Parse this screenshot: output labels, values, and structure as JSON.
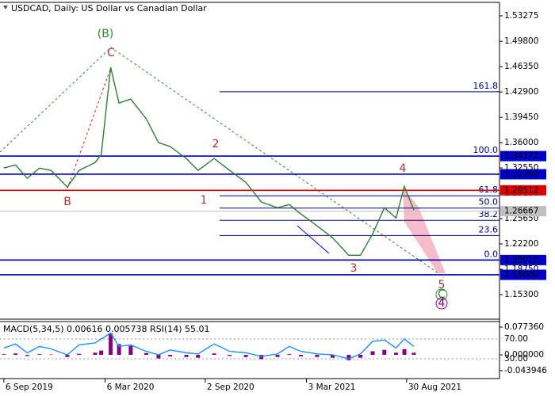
{
  "chart_data": [
    {
      "type": "line",
      "title": "USDCAD, Daily:  US Dollar vs Canadian Dollar",
      "x": [
        "2019-09-06",
        "2019-09-27",
        "2019-10-18",
        "2019-11-09",
        "2019-11-30",
        "2019-12-29",
        "2020-01-19",
        "2020-02-17",
        "2020-02-28",
        "2020-03-16",
        "2020-03-31",
        "2020-04-21",
        "2020-05-19",
        "2020-06-10",
        "2020-07-01",
        "2020-07-30",
        "2020-08-20",
        "2020-09-18",
        "2020-10-16",
        "2020-11-14",
        "2020-12-12",
        "2021-01-10",
        "2021-01-31",
        "2021-02-21",
        "2021-03-22",
        "2021-04-19",
        "2021-05-18",
        "2021-06-08",
        "2021-06-30",
        "2021-07-21",
        "2021-08-11",
        "2021-08-26",
        "2021-09-12"
      ],
      "values": [
        1.3254,
        1.3297,
        1.3114,
        1.3254,
        1.3222,
        1.2995,
        1.3222,
        1.333,
        1.3438,
        1.4625,
        1.414,
        1.4194,
        1.3924,
        1.36,
        1.3546,
        1.3384,
        1.3222,
        1.3384,
        1.3222,
        1.306,
        1.279,
        1.2714,
        1.2757,
        1.2628,
        1.2466,
        1.2304,
        1.2066,
        1.2066,
        1.2358,
        1.2714,
        1.2574,
        1.3005,
        1.2682
      ],
      "color": "#2f7d32",
      "xlim": [
        "2019-08-30",
        "2022-02-13"
      ],
      "xticks": [
        {
          "value": "2019-09-06",
          "label": "6 Sep 2019"
        },
        {
          "value": "2020-03-06",
          "label": "6 Mar 2020"
        },
        {
          "value": "2020-09-02",
          "label": "2 Sep 2020"
        },
        {
          "value": "2021-03-03",
          "label": "3 Mar 2021"
        },
        {
          "value": "2021-08-30",
          "label": "30 Aug 2021"
        }
      ],
      "ylim": [
        1.12064,
        1.54893
      ],
      "yticks": [
        1.53275,
        {
          "value": 1.498,
          "label": "1.49800"
        },
        {
          "value": 1.4635,
          "label": "1.46350"
        },
        {
          "value": 1.429,
          "label": "1.42900"
        },
        {
          "value": 1.3945,
          "label": "1.39450"
        },
        {
          "value": 1.36,
          "label": "1.36000"
        },
        {
          "value": 1.3255,
          "label": "1.32550"
        },
        {
          "value": 1.291,
          "label": "1.29100"
        },
        {
          "value": 1.2565,
          "label": "1.25650"
        },
        {
          "value": 1.222,
          "label": "1.22200"
        },
        {
          "value": 1.1875,
          "label": "1.18750"
        },
        {
          "value": 1.153,
          "label": "1.15300"
        }
      ],
      "levels": [
        {
          "value": 1.34172,
          "label": "1.34172",
          "color": "#0000cc"
        },
        {
          "value": 1.317,
          "label": "1.31700",
          "color": "#0000cc"
        },
        {
          "value": 1.29512,
          "label": "1.29512",
          "color": "#dd0000"
        },
        {
          "value": 1.26667,
          "label": "1.26667",
          "color": "#c0c0c0"
        },
        {
          "value": 1.2001,
          "label": "1.20010",
          "color": "#0000cc"
        },
        {
          "value": 1.18,
          "label": "1.18000",
          "color": "#0000cc"
        }
      ],
      "fib_levels": [
        {
          "name": "161.8",
          "value": 1.4293
        },
        {
          "name": "100.0",
          "value": 1.34172
        },
        {
          "name": "61.8",
          "value": 1.2876
        },
        {
          "name": "50.0",
          "value": 1.2709
        },
        {
          "name": "38.2",
          "value": 1.2542
        },
        {
          "name": "23.6",
          "value": 1.2335
        },
        {
          "name": "0.0",
          "value": 1.2001
        }
      ],
      "annotations": [
        "(B)",
        "C",
        "B",
        "2",
        "1",
        "4",
        "3",
        "5",
        "C",
        "4"
      ]
    },
    {
      "type": "macd-rsi",
      "series": [
        {
          "name": "MACD(5,34,5)",
          "color": "#800080",
          "readouts": [
            0.00616,
            0.005738
          ],
          "values": [
            0.002,
            0.004,
            -0.003,
            0.002,
            0.001,
            -0.006,
            0.003,
            0.006,
            0.012,
            0.06,
            0.03,
            0.025,
            0.005,
            -0.01,
            -0.004,
            -0.006,
            -0.008,
            0.004,
            -0.003,
            -0.006,
            -0.012,
            -0.006,
            0.002,
            -0.004,
            -0.006,
            -0.008,
            -0.015,
            -0.008,
            0.01,
            0.014,
            0.006,
            0.016,
            0.006
          ]
        },
        {
          "name": "RSI(14)",
          "color": "#1e90ff",
          "axis": "y2",
          "readouts": [
            55.01
          ],
          "values": [
            52,
            60,
            42,
            55,
            50,
            38,
            58,
            62,
            70,
            82,
            55,
            58,
            45,
            38,
            48,
            42,
            40,
            60,
            45,
            42,
            35,
            40,
            55,
            45,
            40,
            38,
            30,
            40,
            65,
            68,
            52,
            70,
            55
          ]
        }
      ],
      "ylim": [
        -0.043946,
        0.07736
      ],
      "yticks": [
        {
          "value": 0.07736,
          "label": "0.077360"
        },
        {
          "value": 0,
          "label": "0.000000"
        },
        {
          "value": -0.043946,
          "label": "-0.043946"
        }
      ],
      "y2lim": [
        6,
        94
      ],
      "y2ticks": [
        {
          "value": 70,
          "label": "70.00"
        },
        {
          "value": 30,
          "label": "30.00"
        }
      ]
    }
  ]
}
